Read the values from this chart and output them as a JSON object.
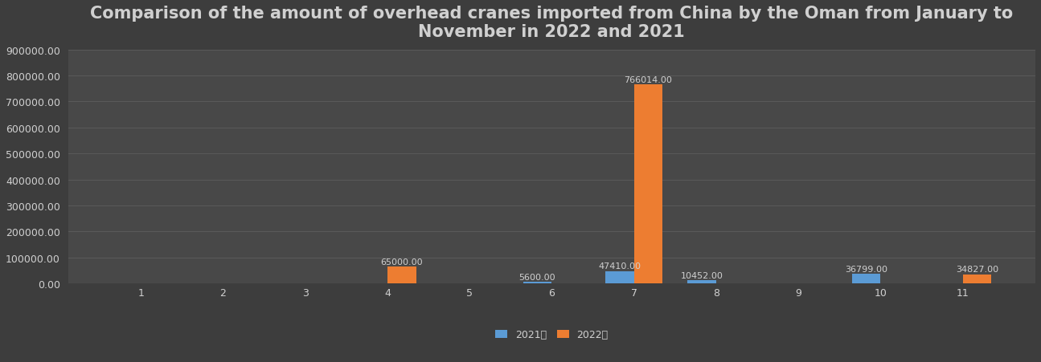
{
  "title": "Comparison of the amount of overhead cranes imported from China by the Oman from January to\nNovember in 2022 and 2021",
  "months": [
    1,
    2,
    3,
    4,
    5,
    6,
    7,
    8,
    9,
    10,
    11
  ],
  "data_2021": [
    0,
    0,
    0,
    0,
    0,
    5600,
    47410,
    10452,
    0,
    36799,
    0
  ],
  "data_2022": [
    0,
    0,
    0,
    65000,
    0,
    0,
    766014,
    0,
    0,
    0,
    34827
  ],
  "labels_2021": [
    null,
    null,
    null,
    null,
    null,
    "5600.00",
    "47410.00",
    "10452.00",
    null,
    "36799.00",
    null
  ],
  "labels_2022": [
    null,
    null,
    null,
    "65000.00",
    null,
    null,
    "766014.00",
    null,
    null,
    null,
    "34827.00"
  ],
  "color_2021": "#5b9bd5",
  "color_2022": "#ed7d31",
  "background_color": "#3d3d3d",
  "plot_background": "#484848",
  "grid_color": "#5a5a5a",
  "text_color": "#d0d0d0",
  "legend_2021": "2021年",
  "legend_2022": "2022年",
  "ylim": [
    0,
    900000
  ],
  "yticks": [
    0,
    100000,
    200000,
    300000,
    400000,
    500000,
    600000,
    700000,
    800000,
    900000
  ],
  "bar_width": 0.35,
  "title_fontsize": 15,
  "tick_fontsize": 9,
  "label_fontsize": 8
}
